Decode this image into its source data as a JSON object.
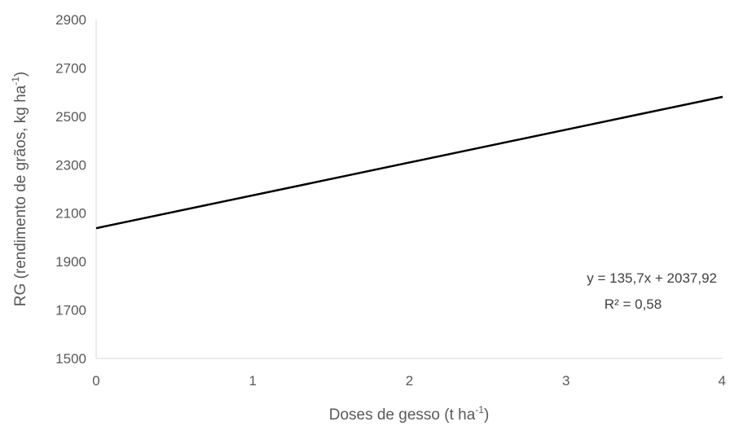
{
  "chart_data": {
    "type": "line",
    "title": "",
    "xlabel": "Doses de gesso (t ha",
    "xlabel_sup": "-1",
    "xlabel_end": ")",
    "ylabel": "RG (rendimento de grãos,  kg ha",
    "ylabel_sup": "-1",
    "ylabel_end": ")",
    "xlim": [
      0,
      4
    ],
    "ylim": [
      1500,
      2900
    ],
    "x_ticks": [
      0,
      1,
      2,
      3,
      4
    ],
    "y_ticks": [
      1500,
      1700,
      1900,
      2100,
      2300,
      2500,
      2700,
      2900
    ],
    "grid": false,
    "series": [
      {
        "x": [
          0,
          4
        ],
        "values": [
          2037.92,
          2580.72
        ],
        "color": "#000000"
      }
    ],
    "annotations": [
      "y = 135,7x + 2037,92",
      "R² = 0,58"
    ]
  }
}
